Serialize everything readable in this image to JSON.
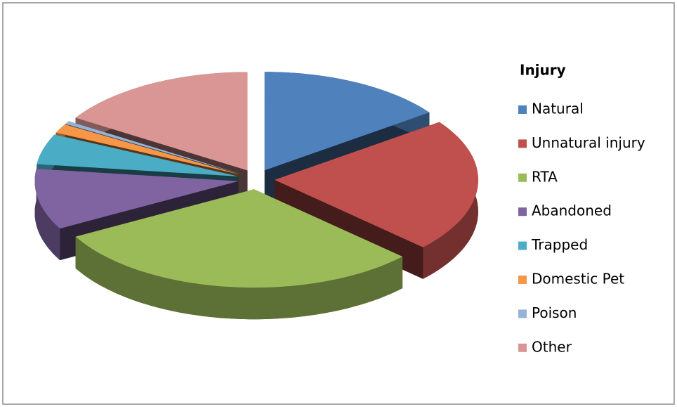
{
  "chart_data": {
    "type": "pie",
    "title": "Injury",
    "categories": [
      "Natural",
      "Unnatural injury",
      "RTA",
      "Abandoned",
      "Trapped",
      "Domestic Pet",
      "Poison",
      "Other"
    ],
    "values": [
      15,
      22,
      30,
      10,
      5,
      1.5,
      0.5,
      16
    ],
    "colors": [
      "#4f81bd",
      "#c0504d",
      "#9bbb59",
      "#8064a2",
      "#4bacc6",
      "#f79646",
      "#95b3d7",
      "#d99694"
    ],
    "legend": "right"
  }
}
